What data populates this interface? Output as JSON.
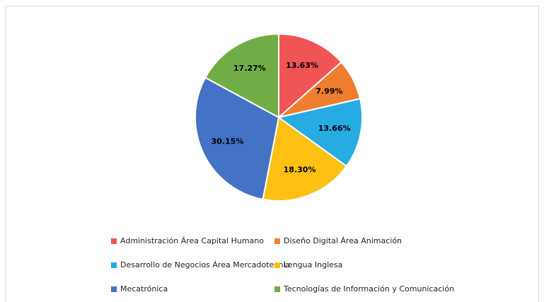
{
  "chart_data": {
    "type": "pie",
    "categories": [
      "Administración Área Capital Humano",
      "Diseño Digital Área Animación",
      "Desarrollo de Negocios Área Mercadotecnia",
      "Lengua Inglesa",
      "Mecatrónica",
      "Tecnologías de Información y Comunicación"
    ],
    "values": [
      13.63,
      7.99,
      13.66,
      18.3,
      30.15,
      17.27
    ],
    "value_labels": [
      "13.63%",
      "7.99%",
      "13.66%",
      "18.30%",
      "30.15%",
      "17.27%"
    ],
    "colors": [
      "#f05455",
      "#f07e2f",
      "#27abe3",
      "#fdc013",
      "#4472c4",
      "#71ad47"
    ],
    "legend": "bottom"
  }
}
